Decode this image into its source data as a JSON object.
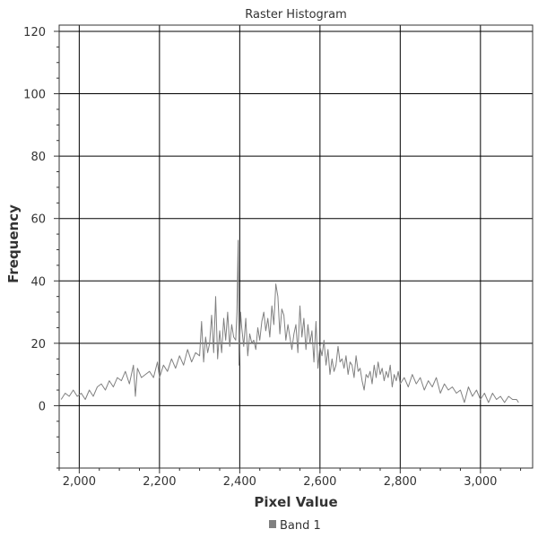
{
  "chart_data": {
    "type": "line",
    "title": "Raster Histogram",
    "xlabel": "Pixel Value",
    "ylabel": "Frequency",
    "xlim": [
      1950,
      3130
    ],
    "ylim": [
      -20,
      122
    ],
    "x_ticks": [
      2000,
      2200,
      2400,
      2600,
      2800,
      3000
    ],
    "x_tick_labels": [
      "2,000",
      "2,200",
      "2,400",
      "2,600",
      "2,800",
      "3,000"
    ],
    "y_ticks": [
      0,
      20,
      40,
      60,
      80,
      100,
      120
    ],
    "y_tick_labels": [
      "0",
      "20",
      "40",
      "60",
      "80",
      "100",
      "120"
    ],
    "grid": true,
    "legend": "bottom-center",
    "series": [
      {
        "name": "Band 1",
        "color": "#808080",
        "points": [
          [
            1955,
            2
          ],
          [
            1965,
            4
          ],
          [
            1975,
            3
          ],
          [
            1985,
            5
          ],
          [
            1995,
            3
          ],
          [
            2005,
            4
          ],
          [
            2015,
            2
          ],
          [
            2025,
            5
          ],
          [
            2035,
            3
          ],
          [
            2045,
            6
          ],
          [
            2055,
            7
          ],
          [
            2065,
            5
          ],
          [
            2075,
            8
          ],
          [
            2085,
            6
          ],
          [
            2095,
            9
          ],
          [
            2105,
            8
          ],
          [
            2115,
            11
          ],
          [
            2125,
            7
          ],
          [
            2135,
            13
          ],
          [
            2140,
            3
          ],
          [
            2145,
            12
          ],
          [
            2155,
            9
          ],
          [
            2165,
            10
          ],
          [
            2175,
            11
          ],
          [
            2185,
            9
          ],
          [
            2195,
            14
          ],
          [
            2200,
            9
          ],
          [
            2210,
            13
          ],
          [
            2220,
            11
          ],
          [
            2230,
            15
          ],
          [
            2240,
            12
          ],
          [
            2250,
            16
          ],
          [
            2260,
            13
          ],
          [
            2270,
            18
          ],
          [
            2280,
            14
          ],
          [
            2290,
            17
          ],
          [
            2300,
            16
          ],
          [
            2305,
            27
          ],
          [
            2310,
            14
          ],
          [
            2315,
            22
          ],
          [
            2320,
            17
          ],
          [
            2325,
            20
          ],
          [
            2330,
            29
          ],
          [
            2335,
            17
          ],
          [
            2340,
            35
          ],
          [
            2345,
            15
          ],
          [
            2350,
            24
          ],
          [
            2355,
            17
          ],
          [
            2360,
            28
          ],
          [
            2365,
            21
          ],
          [
            2370,
            30
          ],
          [
            2375,
            19
          ],
          [
            2380,
            26
          ],
          [
            2385,
            22
          ],
          [
            2390,
            21
          ],
          [
            2393,
            30
          ],
          [
            2396,
            53
          ],
          [
            2398,
            13
          ],
          [
            2402,
            30
          ],
          [
            2405,
            25
          ],
          [
            2410,
            19
          ],
          [
            2415,
            28
          ],
          [
            2420,
            16
          ],
          [
            2425,
            23
          ],
          [
            2430,
            20
          ],
          [
            2435,
            21
          ],
          [
            2440,
            18
          ],
          [
            2445,
            25
          ],
          [
            2450,
            21
          ],
          [
            2455,
            27
          ],
          [
            2460,
            30
          ],
          [
            2465,
            24
          ],
          [
            2470,
            28
          ],
          [
            2475,
            22
          ],
          [
            2480,
            32
          ],
          [
            2485,
            26
          ],
          [
            2490,
            39
          ],
          [
            2495,
            35
          ],
          [
            2500,
            23
          ],
          [
            2505,
            31
          ],
          [
            2510,
            29
          ],
          [
            2515,
            21
          ],
          [
            2520,
            26
          ],
          [
            2525,
            22
          ],
          [
            2530,
            18
          ],
          [
            2535,
            23
          ],
          [
            2540,
            26
          ],
          [
            2545,
            17
          ],
          [
            2550,
            32
          ],
          [
            2555,
            22
          ],
          [
            2560,
            28
          ],
          [
            2565,
            18
          ],
          [
            2570,
            26
          ],
          [
            2575,
            20
          ],
          [
            2580,
            24
          ],
          [
            2585,
            14
          ],
          [
            2590,
            27
          ],
          [
            2595,
            12
          ],
          [
            2600,
            19
          ],
          [
            2605,
            16
          ],
          [
            2610,
            21
          ],
          [
            2615,
            13
          ],
          [
            2620,
            18
          ],
          [
            2625,
            10
          ],
          [
            2630,
            15
          ],
          [
            2635,
            11
          ],
          [
            2640,
            13
          ],
          [
            2645,
            19
          ],
          [
            2650,
            14
          ],
          [
            2655,
            15
          ],
          [
            2660,
            12
          ],
          [
            2665,
            16
          ],
          [
            2670,
            10
          ],
          [
            2675,
            14
          ],
          [
            2680,
            13
          ],
          [
            2685,
            9
          ],
          [
            2690,
            16
          ],
          [
            2695,
            11
          ],
          [
            2700,
            12
          ],
          [
            2705,
            8
          ],
          [
            2710,
            5
          ],
          [
            2715,
            10
          ],
          [
            2720,
            9
          ],
          [
            2725,
            11
          ],
          [
            2730,
            7
          ],
          [
            2735,
            13
          ],
          [
            2740,
            9
          ],
          [
            2745,
            14
          ],
          [
            2750,
            10
          ],
          [
            2755,
            12
          ],
          [
            2760,
            8
          ],
          [
            2765,
            11
          ],
          [
            2770,
            9
          ],
          [
            2775,
            13
          ],
          [
            2780,
            6
          ],
          [
            2785,
            10
          ],
          [
            2790,
            8
          ],
          [
            2795,
            11
          ],
          [
            2800,
            7
          ],
          [
            2810,
            9
          ],
          [
            2820,
            6
          ],
          [
            2830,
            10
          ],
          [
            2840,
            7
          ],
          [
            2850,
            9
          ],
          [
            2860,
            5
          ],
          [
            2870,
            8
          ],
          [
            2880,
            6
          ],
          [
            2890,
            9
          ],
          [
            2900,
            4
          ],
          [
            2910,
            7
          ],
          [
            2920,
            5
          ],
          [
            2930,
            6
          ],
          [
            2940,
            4
          ],
          [
            2950,
            5
          ],
          [
            2960,
            1
          ],
          [
            2970,
            6
          ],
          [
            2980,
            3
          ],
          [
            2990,
            5
          ],
          [
            3000,
            2
          ],
          [
            3010,
            4
          ],
          [
            3020,
            1
          ],
          [
            3030,
            4
          ],
          [
            3040,
            2
          ],
          [
            3050,
            3
          ],
          [
            3060,
            1
          ],
          [
            3070,
            3
          ],
          [
            3080,
            2
          ],
          [
            3090,
            2
          ],
          [
            3095,
            1
          ]
        ]
      }
    ]
  }
}
